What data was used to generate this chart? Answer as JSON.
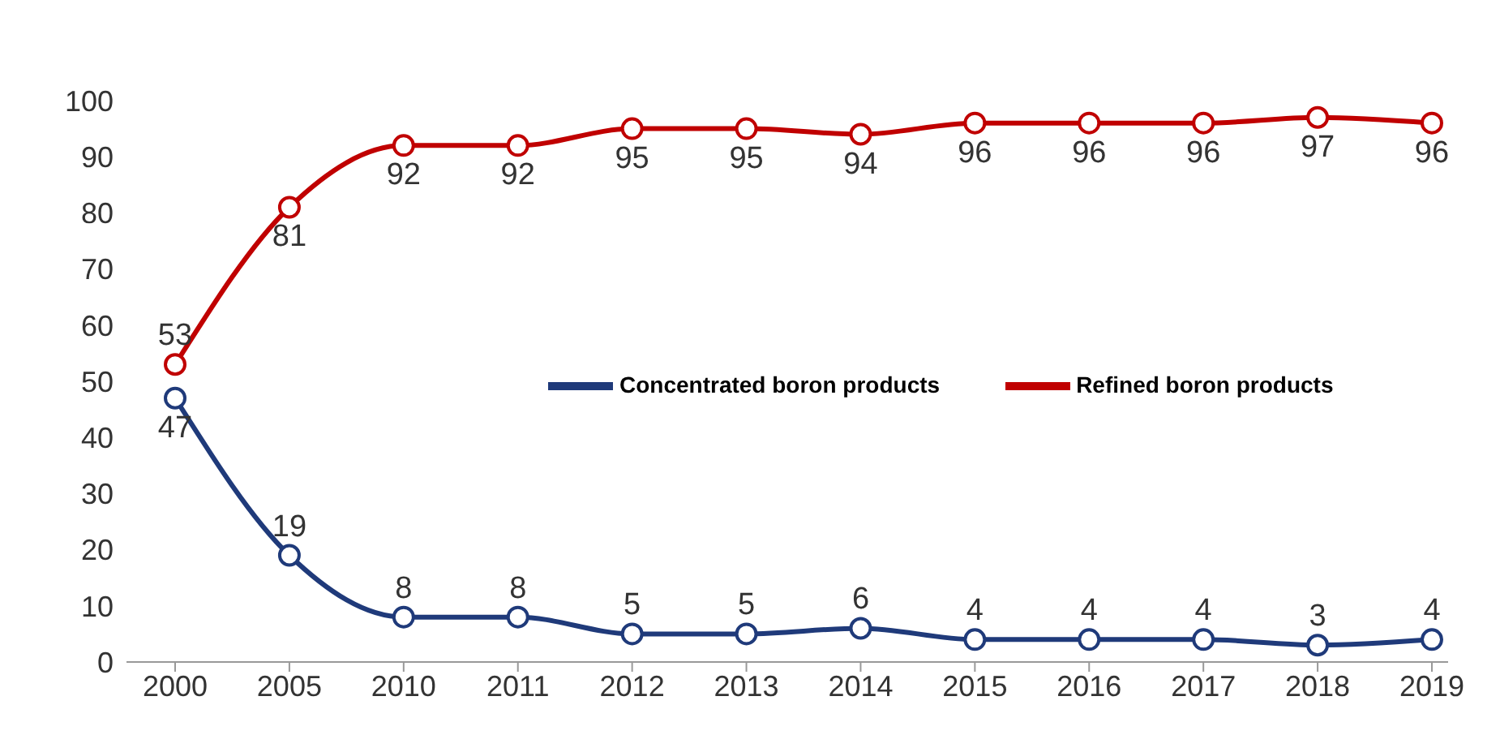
{
  "chart_data": {
    "type": "line",
    "categories": [
      "2000",
      "2005",
      "2010",
      "2011",
      "2012",
      "2013",
      "2014",
      "2015",
      "2016",
      "2017",
      "2018",
      "2019"
    ],
    "series": [
      {
        "name": "Concentrated boron products",
        "color": "#1f3a7a",
        "values": [
          47,
          19,
          8,
          8,
          5,
          5,
          6,
          4,
          4,
          4,
          3,
          4
        ]
      },
      {
        "name": "Refined boron products",
        "color": "#c00000",
        "values": [
          53,
          81,
          92,
          92,
          95,
          95,
          94,
          96,
          96,
          96,
          97,
          96
        ]
      }
    ],
    "ylim": [
      0,
      100
    ],
    "yticks": [
      0,
      10,
      20,
      30,
      40,
      50,
      60,
      70,
      80,
      90,
      100
    ],
    "grid": false,
    "legend": "right",
    "marker": "circle",
    "line_style": "solid",
    "data_labels": true
  }
}
